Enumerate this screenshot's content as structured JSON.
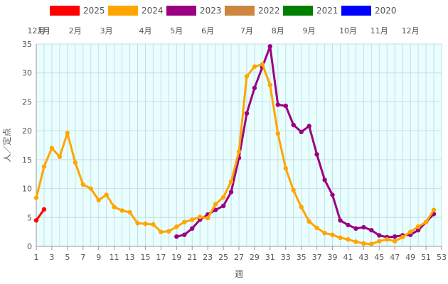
{
  "chart_data": {
    "type": "line",
    "xlabel": "週",
    "ylabel": "人／定点",
    "xlim": [
      1,
      53
    ],
    "ylim": [
      0,
      35
    ],
    "x_ticks": [
      1,
      3,
      5,
      7,
      9,
      11,
      13,
      15,
      17,
      19,
      21,
      23,
      25,
      27,
      29,
      31,
      33,
      35,
      37,
      39,
      41,
      43,
      45,
      47,
      49,
      51,
      53
    ],
    "y_ticks": [
      0,
      5,
      10,
      15,
      20,
      25,
      30,
      35
    ],
    "grid": true,
    "legend_position": "top",
    "month_labels": [
      {
        "label": "12月",
        "week": 1
      },
      {
        "label": "1月",
        "week": 2
      },
      {
        "label": "2月",
        "week": 6
      },
      {
        "label": "3月",
        "week": 10
      },
      {
        "label": "4月",
        "week": 15
      },
      {
        "label": "5月",
        "week": 19
      },
      {
        "label": "6月",
        "week": 23
      },
      {
        "label": "7月",
        "week": 28
      },
      {
        "label": "8月",
        "week": 32
      },
      {
        "label": "9月",
        "week": 36
      },
      {
        "label": "10月",
        "week": 41
      },
      {
        "label": "11月",
        "week": 45
      },
      {
        "label": "12月",
        "week": 49
      }
    ],
    "series": [
      {
        "name": "2025",
        "color": "#ff0000",
        "start_week": 1,
        "values": [
          4.5,
          6.4
        ]
      },
      {
        "name": "2024",
        "color": "#ffa500",
        "start_week": 1,
        "values": [
          8.4,
          13.8,
          17.0,
          15.5,
          19.6,
          14.5,
          10.7,
          10.0,
          8.0,
          8.9,
          6.8,
          6.2,
          5.9,
          4.0,
          3.9,
          3.8,
          2.5,
          2.6,
          3.4,
          4.2,
          4.6,
          5.1,
          4.9,
          7.3,
          8.5,
          11.2,
          16.4,
          29.4,
          31.1,
          31.5,
          27.9,
          19.5,
          13.5,
          9.7,
          6.8,
          4.3,
          3.2,
          2.3,
          2.0,
          1.5,
          1.2,
          0.8,
          0.5,
          0.4,
          0.9,
          1.2,
          0.9,
          1.6,
          2.5,
          3.4,
          4.2,
          6.3
        ]
      },
      {
        "name": "2023",
        "color": "#9b0080",
        "start_week": 19,
        "values": [
          1.7,
          2.0,
          3.1,
          4.6,
          5.5,
          6.3,
          7.0,
          9.4,
          15.3,
          23.0,
          27.4,
          31.0,
          34.6,
          24.5,
          24.3,
          21.0,
          19.8,
          20.8,
          15.9,
          11.5,
          8.9,
          4.5,
          3.7,
          3.1,
          3.3,
          2.8,
          1.9,
          1.6,
          1.7,
          1.9,
          2.0,
          2.8,
          4.2,
          5.6
        ]
      },
      {
        "name": "2022",
        "color": "#cd853f",
        "start_week": 1,
        "values": []
      },
      {
        "name": "2021",
        "color": "#008000",
        "start_week": 1,
        "values": []
      },
      {
        "name": "2020",
        "color": "#0000ff",
        "start_week": 1,
        "values": []
      }
    ]
  }
}
